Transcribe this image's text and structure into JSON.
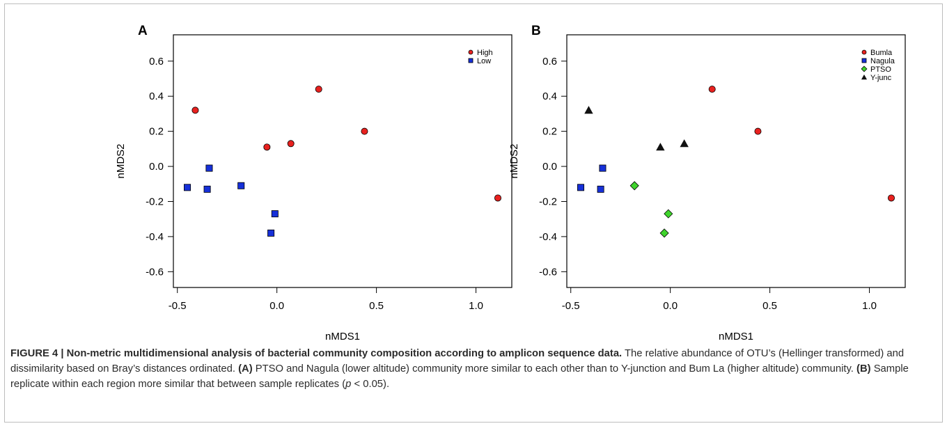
{
  "chart_data": [
    {
      "type": "scatter",
      "panel_label": "A",
      "xlabel": "nMDS1",
      "ylabel": "nMDS2",
      "xlim": [
        -0.52,
        1.18
      ],
      "ylim": [
        -0.69,
        0.75
      ],
      "xticks": [
        -0.5,
        0.0,
        0.5,
        1.0
      ],
      "xtick_labels": [
        "-0.5",
        "0.0",
        "0.5",
        "1.0"
      ],
      "yticks": [
        -0.6,
        -0.4,
        -0.2,
        0.0,
        0.2,
        0.4,
        0.6
      ],
      "ytick_labels": [
        "-0.6",
        "-0.4",
        "-0.2",
        "0.0",
        "0.2",
        "0.4",
        "0.6"
      ],
      "grid": false,
      "legend_position": "top-right",
      "series": [
        {
          "name": "High",
          "color": "#e8211f",
          "marker": "circle",
          "points": [
            [
              -0.41,
              0.32
            ],
            [
              -0.05,
              0.11
            ],
            [
              0.07,
              0.13
            ],
            [
              0.21,
              0.44
            ],
            [
              0.44,
              0.2
            ],
            [
              1.11,
              -0.18
            ]
          ]
        },
        {
          "name": "Low",
          "color": "#1630d8",
          "marker": "square",
          "points": [
            [
              -0.45,
              -0.12
            ],
            [
              -0.35,
              -0.13
            ],
            [
              -0.34,
              -0.01
            ],
            [
              -0.18,
              -0.11
            ],
            [
              -0.01,
              -0.27
            ],
            [
              -0.03,
              -0.38
            ]
          ]
        }
      ]
    },
    {
      "type": "scatter",
      "panel_label": "B",
      "xlabel": "nMDS1",
      "ylabel": "nMDS2",
      "xlim": [
        -0.52,
        1.18
      ],
      "ylim": [
        -0.69,
        0.75
      ],
      "xticks": [
        -0.5,
        0.0,
        0.5,
        1.0
      ],
      "xtick_labels": [
        "-0.5",
        "0.0",
        "0.5",
        "1.0"
      ],
      "yticks": [
        -0.6,
        -0.4,
        -0.2,
        0.0,
        0.2,
        0.4,
        0.6
      ],
      "ytick_labels": [
        "-0.6",
        "-0.4",
        "-0.2",
        "0.0",
        "0.2",
        "0.4",
        "0.6"
      ],
      "grid": false,
      "legend_position": "top-right",
      "series": [
        {
          "name": "Bumla",
          "color": "#e8211f",
          "marker": "circle",
          "points": [
            [
              0.21,
              0.44
            ],
            [
              0.44,
              0.2
            ],
            [
              1.11,
              -0.18
            ]
          ]
        },
        {
          "name": "Nagula",
          "color": "#1630d8",
          "marker": "square",
          "points": [
            [
              -0.45,
              -0.12
            ],
            [
              -0.35,
              -0.13
            ],
            [
              -0.34,
              -0.01
            ]
          ]
        },
        {
          "name": "PTSO",
          "color": "#3fd42c",
          "marker": "diamond",
          "points": [
            [
              -0.18,
              -0.11
            ],
            [
              -0.01,
              -0.27
            ],
            [
              -0.03,
              -0.38
            ]
          ]
        },
        {
          "name": "Y-junc",
          "color": "#111111",
          "marker": "triangle",
          "points": [
            [
              -0.41,
              0.32
            ],
            [
              -0.05,
              0.11
            ],
            [
              0.07,
              0.13
            ]
          ]
        }
      ]
    }
  ],
  "caption": {
    "title": "FIGURE 4 | Non-metric multidimensional analysis of bacterial community composition according to amplicon sequence data.",
    "text1": " The relative abundance of OTU’s (Hellinger transformed) and dissimilarity based on Bray’s distances ordinated. ",
    "ref_a": "(A)",
    "text2": " PTSO and Nagula (lower altitude) community more similar to each other than to Y-junction and Bum La (higher altitude) community. ",
    "ref_b": "(B)",
    "text3": " Sample replicate within each region more similar that between sample replicates (",
    "p_symbol": "p",
    "text4": " < 0.05)."
  }
}
